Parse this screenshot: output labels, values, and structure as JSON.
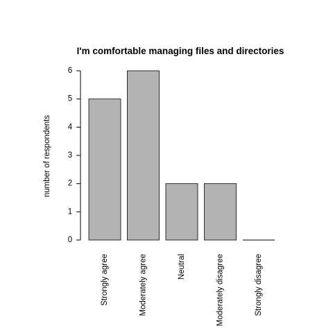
{
  "chart_data": {
    "type": "bar",
    "title": "I'm comfortable managing files and directories",
    "xlabel": "",
    "ylabel": "number of respondents",
    "categories": [
      "Strongly agree",
      "Moderately agree",
      "Neutral",
      "Moderately disagree",
      "Strongly disagree"
    ],
    "values": [
      5,
      6,
      2,
      2,
      0
    ],
    "yticks": [
      "0",
      "1",
      "2",
      "3",
      "4",
      "5",
      "6"
    ],
    "ylim": [
      0,
      6
    ],
    "grid": false,
    "bar_color": "#b3b3b3",
    "border_color": "#000000"
  }
}
